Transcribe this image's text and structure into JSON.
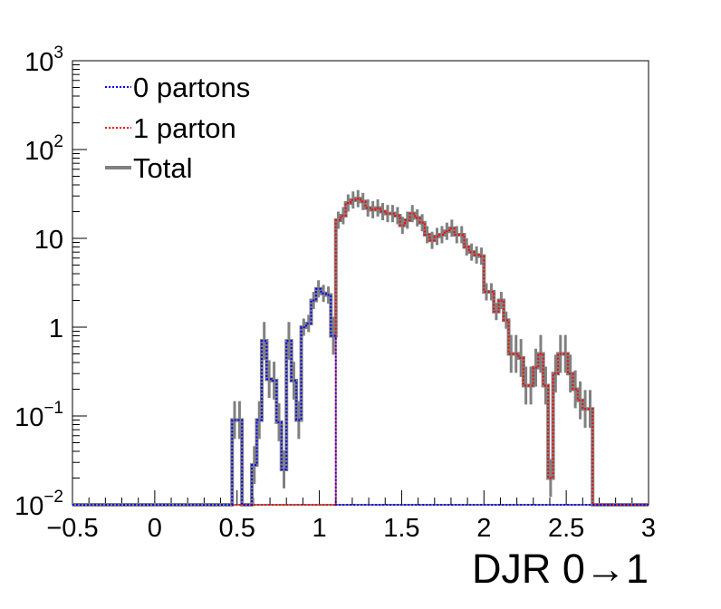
{
  "chart_data": {
    "type": "line",
    "xlabel": "DJR 0→1",
    "ylabel": "",
    "xlim": [
      -0.5,
      3.0
    ],
    "ylim": [
      0.01,
      1000
    ],
    "yscale": "log",
    "grid": false,
    "legend_position": "top-left",
    "x_ticks": [
      "−0.5",
      "0",
      "0.5",
      "1",
      "1.5",
      "2",
      "2.5",
      "3"
    ],
    "y_ticks": [
      {
        "base": "10",
        "exp": "−2"
      },
      {
        "base": "10",
        "exp": "−1"
      },
      {
        "base": "1",
        "exp": ""
      },
      {
        "base": "10",
        "exp": ""
      },
      {
        "base": "10",
        "exp": "2"
      },
      {
        "base": "10",
        "exp": "3"
      }
    ],
    "bin_edges": [
      0.47,
      0.5,
      0.53,
      0.56,
      0.59,
      0.62,
      0.65,
      0.68,
      0.71,
      0.74,
      0.77,
      0.8,
      0.83,
      0.86,
      0.89,
      0.92,
      0.95,
      0.98,
      1.01,
      1.04,
      1.07,
      1.1,
      1.13,
      1.16,
      1.19,
      1.22,
      1.25,
      1.28,
      1.31,
      1.34,
      1.37,
      1.4,
      1.43,
      1.46,
      1.49,
      1.52,
      1.55,
      1.58,
      1.61,
      1.64,
      1.67,
      1.7,
      1.73,
      1.76,
      1.79,
      1.82,
      1.85,
      1.88,
      1.91,
      1.94,
      1.97,
      2.0,
      2.03,
      2.06,
      2.09,
      2.12,
      2.15,
      2.18,
      2.21,
      2.24,
      2.27,
      2.3,
      2.33,
      2.36,
      2.39,
      2.42,
      2.45,
      2.48,
      2.51,
      2.54,
      2.57,
      2.6,
      2.63,
      2.66,
      2.69,
      2.72,
      2.75,
      2.78,
      2.81,
      2.84,
      2.87,
      2.9,
      2.93
    ],
    "series": [
      {
        "name": "0 partons",
        "color": "#0000ff",
        "dash": "dotted",
        "values": [
          0.09,
          0.09,
          0.01,
          0.01,
          0.028,
          0.09,
          0.7,
          0.26,
          0.25,
          0.085,
          0.025,
          0.7,
          0.25,
          0.09,
          1.0,
          1.1,
          2.0,
          2.7,
          2.4,
          2.3,
          0.8,
          0.01,
          0.01,
          0.01,
          0.01,
          0.01,
          0.01,
          0.01,
          0.01,
          0.01,
          0.01,
          0.01,
          0.01,
          0.01,
          0.01,
          0.01,
          0.01,
          0.01,
          0.01,
          0.01,
          0.01,
          0.01,
          0.01,
          0.01,
          0.01,
          0.01,
          0.01,
          0.01,
          0.01,
          0.01,
          0.01,
          0.01,
          0.01,
          0.01,
          0.01,
          0.01,
          0.01,
          0.01,
          0.01,
          0.01,
          0.01,
          0.01,
          0.01,
          0.01,
          0.01,
          0.01,
          0.01,
          0.01,
          0.01,
          0.01,
          0.01,
          0.01,
          0.01,
          0.01,
          0.01,
          0.01,
          0.01,
          0.01,
          0.01,
          0.01,
          0.01,
          0.01
        ]
      },
      {
        "name": "1 parton",
        "color": "#ff0000",
        "dash": "dotted",
        "values": [
          0.01,
          0.01,
          0.01,
          0.01,
          0.01,
          0.01,
          0.01,
          0.01,
          0.01,
          0.01,
          0.01,
          0.01,
          0.01,
          0.01,
          0.01,
          0.01,
          0.01,
          0.01,
          0.01,
          0.01,
          0.01,
          16.0,
          18.0,
          25.0,
          27.0,
          28.0,
          26.0,
          22.0,
          21.0,
          22.0,
          20.0,
          19.0,
          19.0,
          18.0,
          14.0,
          16.0,
          19.0,
          17.0,
          15.0,
          11.0,
          9.5,
          10.5,
          11.0,
          12.0,
          13.0,
          11.0,
          11.0,
          8.0,
          7.0,
          6.5,
          6.3,
          2.5,
          2.5,
          1.5,
          2.0,
          1.2,
          0.5,
          0.5,
          0.45,
          0.22,
          0.22,
          0.35,
          0.5,
          0.22,
          0.02,
          0.3,
          0.5,
          0.5,
          0.3,
          0.2,
          0.15,
          0.12,
          0.12,
          0.01,
          0.01,
          0.01,
          0.01,
          0.01,
          0.01,
          0.01,
          0.01,
          0.01
        ]
      },
      {
        "name": "Total",
        "color": "#808080",
        "dash": "solid",
        "values": [
          0.09,
          0.09,
          0.01,
          0.01,
          0.028,
          0.09,
          0.7,
          0.26,
          0.25,
          0.085,
          0.025,
          0.7,
          0.25,
          0.09,
          1.0,
          1.1,
          2.0,
          2.7,
          2.4,
          2.3,
          0.8,
          16.0,
          18.0,
          25.0,
          27.0,
          28.0,
          26.0,
          22.0,
          21.0,
          22.0,
          20.0,
          19.0,
          19.0,
          18.0,
          14.0,
          16.0,
          19.0,
          17.0,
          15.0,
          11.0,
          9.5,
          10.5,
          11.0,
          12.0,
          13.0,
          11.0,
          11.0,
          8.0,
          7.0,
          6.5,
          6.3,
          2.5,
          2.5,
          1.5,
          2.0,
          1.2,
          0.5,
          0.5,
          0.45,
          0.22,
          0.22,
          0.35,
          0.5,
          0.22,
          0.02,
          0.3,
          0.5,
          0.5,
          0.3,
          0.2,
          0.15,
          0.12,
          0.12,
          0.01,
          0.01,
          0.01,
          0.01,
          0.01,
          0.01,
          0.01,
          0.01,
          0.01
        ]
      }
    ]
  }
}
